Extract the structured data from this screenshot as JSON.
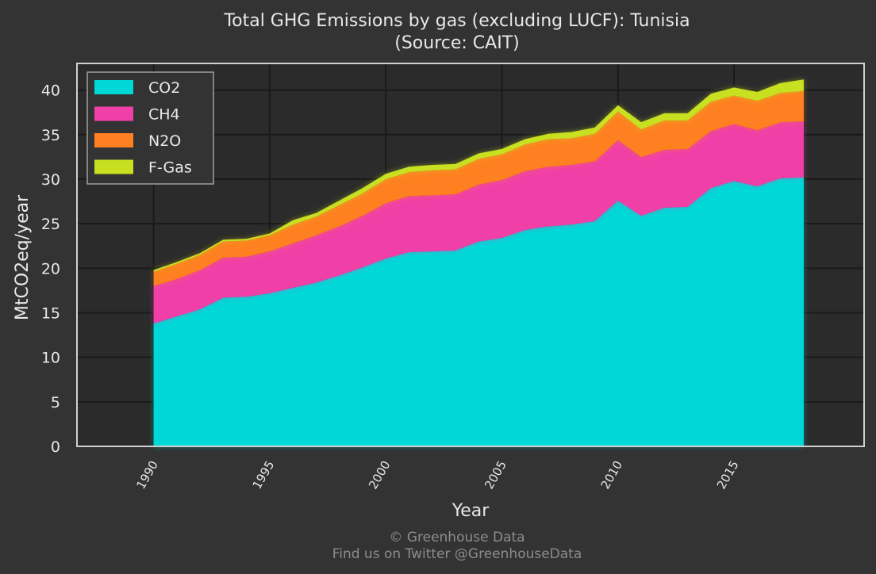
{
  "chart_data": {
    "type": "area",
    "stacked": true,
    "title": "Total GHG Emissions by gas (excluding LUCF): Tunisia",
    "subtitle": "(Source: CAIT)",
    "xlabel": "Year",
    "ylabel": "MtCO2eq/year",
    "xlim": [
      1986.7,
      2020.6
    ],
    "ylim": [
      0,
      43
    ],
    "xticks": [
      1990,
      1995,
      2000,
      2005,
      2010,
      2015
    ],
    "yticks": [
      0,
      5,
      10,
      15,
      20,
      25,
      30,
      35,
      40
    ],
    "grid": true,
    "legend_position": "top-left",
    "x": [
      1990,
      1991,
      1992,
      1993,
      1994,
      1995,
      1996,
      1997,
      1998,
      1999,
      2000,
      2001,
      2002,
      2003,
      2004,
      2005,
      2006,
      2007,
      2008,
      2009,
      2010,
      2011,
      2012,
      2013,
      2014,
      2015,
      2016,
      2017,
      2018
    ],
    "series": [
      {
        "name": "CO2",
        "color": "#00d8d8",
        "values": [
          13.8,
          14.6,
          15.4,
          16.7,
          16.8,
          17.2,
          17.8,
          18.4,
          19.2,
          20.1,
          21.1,
          21.8,
          21.9,
          22.0,
          23.0,
          23.4,
          24.3,
          24.7,
          24.9,
          25.3,
          27.6,
          25.9,
          26.8,
          26.9,
          29.0,
          29.8,
          29.2,
          30.1,
          30.2
        ]
      },
      {
        "name": "CH4",
        "color": "#f040a8",
        "values": [
          4.2,
          4.2,
          4.4,
          4.5,
          4.5,
          4.7,
          5.0,
          5.3,
          5.5,
          5.8,
          6.2,
          6.3,
          6.3,
          6.3,
          6.4,
          6.5,
          6.6,
          6.7,
          6.7,
          6.7,
          6.8,
          6.6,
          6.5,
          6.5,
          6.4,
          6.4,
          6.3,
          6.3,
          6.3
        ]
      },
      {
        "name": "N2O",
        "color": "#ff8020",
        "values": [
          1.6,
          1.7,
          1.7,
          1.8,
          1.8,
          1.8,
          2.1,
          2.1,
          2.4,
          2.5,
          2.7,
          2.7,
          2.8,
          2.8,
          2.9,
          2.9,
          3.0,
          3.1,
          3.0,
          3.1,
          3.2,
          3.1,
          3.3,
          3.2,
          3.3,
          3.2,
          3.3,
          3.3,
          3.4
        ]
      },
      {
        "name": "F-Gas",
        "color": "#c8e020",
        "values": [
          0.2,
          0.2,
          0.2,
          0.2,
          0.2,
          0.2,
          0.5,
          0.4,
          0.5,
          0.6,
          0.6,
          0.6,
          0.6,
          0.6,
          0.6,
          0.6,
          0.6,
          0.6,
          0.7,
          0.7,
          0.7,
          0.8,
          0.8,
          0.8,
          0.9,
          0.9,
          1.0,
          1.1,
          1.3
        ]
      }
    ]
  },
  "footer": {
    "copyright": "© Greenhouse Data",
    "twitter": "Find us on Twitter @GreenhouseData"
  }
}
